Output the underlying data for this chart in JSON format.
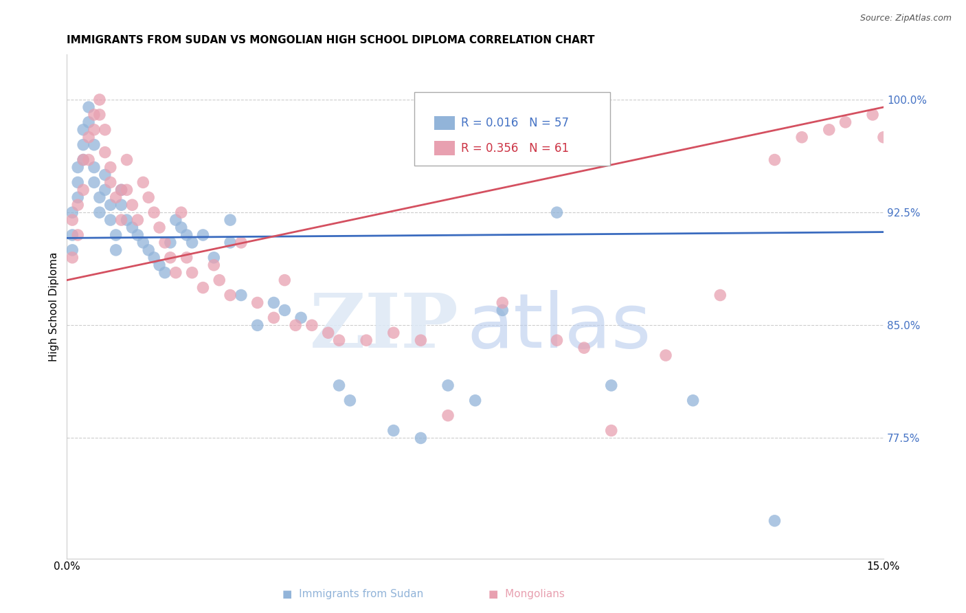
{
  "title": "IMMIGRANTS FROM SUDAN VS MONGOLIAN HIGH SCHOOL DIPLOMA CORRELATION CHART",
  "source": "Source: ZipAtlas.com",
  "ylabel": "High School Diploma",
  "xlim": [
    0.0,
    0.15
  ],
  "ylim": [
    0.695,
    1.03
  ],
  "blue_color": "#92b4d9",
  "pink_color": "#e8a0b0",
  "blue_line_color": "#3a6bbf",
  "pink_line_color": "#d45060",
  "blue_R": 0.016,
  "blue_N": 57,
  "pink_R": 0.356,
  "pink_N": 61,
  "background_color": "#ffffff",
  "grid_color": "#cccccc",
  "tick_color": "#4472c4",
  "legend_text_color_blue": "#4472c4",
  "legend_text_color_pink": "#cc3344",
  "blue_scatter_x": [
    0.001,
    0.001,
    0.001,
    0.002,
    0.002,
    0.002,
    0.003,
    0.003,
    0.003,
    0.004,
    0.004,
    0.005,
    0.005,
    0.005,
    0.006,
    0.006,
    0.007,
    0.007,
    0.008,
    0.008,
    0.009,
    0.009,
    0.01,
    0.01,
    0.011,
    0.012,
    0.013,
    0.014,
    0.015,
    0.016,
    0.017,
    0.018,
    0.019,
    0.02,
    0.021,
    0.022,
    0.023,
    0.025,
    0.027,
    0.03,
    0.03,
    0.032,
    0.035,
    0.038,
    0.04,
    0.043,
    0.05,
    0.052,
    0.06,
    0.065,
    0.07,
    0.075,
    0.08,
    0.09,
    0.1,
    0.115,
    0.13
  ],
  "blue_scatter_y": [
    0.91,
    0.9,
    0.925,
    0.935,
    0.945,
    0.955,
    0.96,
    0.97,
    0.98,
    0.985,
    0.995,
    0.97,
    0.955,
    0.945,
    0.935,
    0.925,
    0.94,
    0.95,
    0.93,
    0.92,
    0.91,
    0.9,
    0.93,
    0.94,
    0.92,
    0.915,
    0.91,
    0.905,
    0.9,
    0.895,
    0.89,
    0.885,
    0.905,
    0.92,
    0.915,
    0.91,
    0.905,
    0.91,
    0.895,
    0.905,
    0.92,
    0.87,
    0.85,
    0.865,
    0.86,
    0.855,
    0.81,
    0.8,
    0.78,
    0.775,
    0.81,
    0.8,
    0.86,
    0.925,
    0.81,
    0.8,
    0.72
  ],
  "pink_scatter_x": [
    0.001,
    0.001,
    0.002,
    0.002,
    0.003,
    0.003,
    0.004,
    0.004,
    0.005,
    0.005,
    0.006,
    0.006,
    0.007,
    0.007,
    0.008,
    0.008,
    0.009,
    0.01,
    0.01,
    0.011,
    0.011,
    0.012,
    0.013,
    0.014,
    0.015,
    0.016,
    0.017,
    0.018,
    0.019,
    0.02,
    0.021,
    0.022,
    0.023,
    0.025,
    0.027,
    0.028,
    0.03,
    0.032,
    0.035,
    0.038,
    0.04,
    0.042,
    0.045,
    0.048,
    0.05,
    0.055,
    0.06,
    0.065,
    0.07,
    0.08,
    0.09,
    0.095,
    0.1,
    0.11,
    0.12,
    0.13,
    0.135,
    0.14,
    0.143,
    0.148,
    0.15
  ],
  "pink_scatter_y": [
    0.895,
    0.92,
    0.93,
    0.91,
    0.94,
    0.96,
    0.96,
    0.975,
    0.98,
    0.99,
    0.99,
    1.0,
    0.98,
    0.965,
    0.955,
    0.945,
    0.935,
    0.94,
    0.92,
    0.96,
    0.94,
    0.93,
    0.92,
    0.945,
    0.935,
    0.925,
    0.915,
    0.905,
    0.895,
    0.885,
    0.925,
    0.895,
    0.885,
    0.875,
    0.89,
    0.88,
    0.87,
    0.905,
    0.865,
    0.855,
    0.88,
    0.85,
    0.85,
    0.845,
    0.84,
    0.84,
    0.845,
    0.84,
    0.79,
    0.865,
    0.84,
    0.835,
    0.78,
    0.83,
    0.87,
    0.96,
    0.975,
    0.98,
    0.985,
    0.99,
    0.975
  ]
}
